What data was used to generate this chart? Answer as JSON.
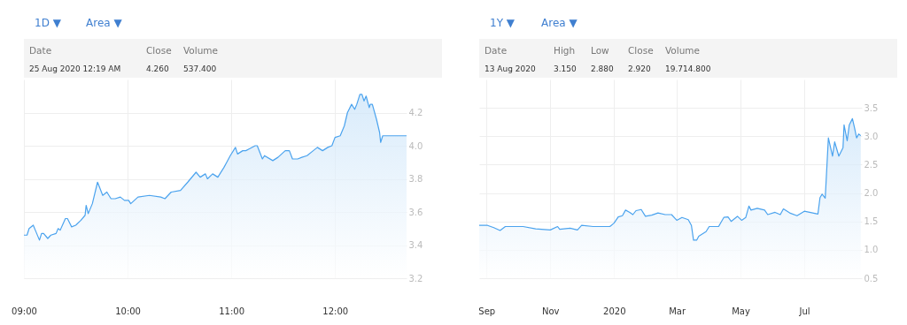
{
  "chart_data": [
    {
      "type": "area",
      "annotations": [
        "1D ▼",
        "Area ▼",
        "Date",
        "Close",
        "Volume",
        "25 Aug 2020 12:19 AM",
        "4.260",
        "537.400"
      ],
      "x": [
        9.0,
        9.03,
        9.05,
        9.09,
        9.11,
        9.15,
        9.17,
        9.19,
        9.23,
        9.26,
        9.31,
        9.33,
        9.35,
        9.4,
        9.42,
        9.46,
        9.5,
        9.55,
        9.59,
        9.6,
        9.62,
        9.66,
        9.71,
        9.76,
        9.8,
        9.84,
        9.88,
        9.93,
        9.97,
        10.01,
        10.03,
        10.1,
        10.21,
        10.32,
        10.36,
        10.42,
        10.51,
        10.58,
        10.66,
        10.7,
        10.75,
        10.77,
        10.82,
        10.87,
        10.93,
        10.99,
        11.04,
        11.06,
        11.11,
        11.14,
        11.17,
        11.23,
        11.25,
        11.3,
        11.32,
        11.4,
        11.45,
        11.52,
        11.56,
        11.59,
        11.64,
        11.68,
        11.73,
        11.79,
        11.83,
        11.88,
        11.93,
        11.97,
        12.0,
        12.05,
        12.09,
        12.12,
        12.16,
        12.19,
        12.21,
        12.24,
        12.26,
        12.28,
        12.3,
        12.33,
        12.34,
        12.36,
        12.4,
        12.43,
        12.44,
        12.46,
        12.69
      ],
      "series": [
        {
          "color": "#4ba3ee",
          "values": [
            3.46,
            3.46,
            3.5,
            3.52,
            3.49,
            3.43,
            3.47,
            3.47,
            3.44,
            3.46,
            3.47,
            3.5,
            3.49,
            3.56,
            3.56,
            3.51,
            3.52,
            3.55,
            3.58,
            3.64,
            3.59,
            3.65,
            3.78,
            3.7,
            3.72,
            3.68,
            3.68,
            3.69,
            3.67,
            3.67,
            3.65,
            3.69,
            3.7,
            3.69,
            3.68,
            3.72,
            3.73,
            3.78,
            3.84,
            3.81,
            3.83,
            3.8,
            3.83,
            3.81,
            3.87,
            3.94,
            3.99,
            3.95,
            3.97,
            3.97,
            3.98,
            4.0,
            4.0,
            3.92,
            3.94,
            3.91,
            3.93,
            3.97,
            3.97,
            3.92,
            3.92,
            3.93,
            3.94,
            3.97,
            3.99,
            3.97,
            3.99,
            4.0,
            4.05,
            4.06,
            4.12,
            4.2,
            4.25,
            4.22,
            4.25,
            4.31,
            4.31,
            4.27,
            4.3,
            4.23,
            4.25,
            4.25,
            4.16,
            4.08,
            4.02,
            4.06,
            4.06
          ]
        }
      ],
      "xlim": [
        9,
        12.69
      ],
      "xticks": [
        {
          "value": 9,
          "label": "09:00"
        },
        {
          "value": 10,
          "label": "10:00"
        },
        {
          "value": 11,
          "label": "11:00"
        },
        {
          "value": 12,
          "label": "12:00"
        }
      ],
      "ylim": [
        3.2,
        4.4
      ],
      "yticks": [
        3.2,
        3.4,
        3.6,
        3.8,
        {
          "value": 4,
          "label": "4.0"
        },
        4.2
      ],
      "grid": true
    },
    {
      "type": "area",
      "annotations": [
        "1Y ▼",
        "Area ▼",
        "Date",
        "High",
        "Low",
        "Close",
        "Volume",
        "13 Aug 2020",
        "3.150",
        "2.880",
        "2.920",
        "19.714.800"
      ],
      "x": [
        "2019-08-25",
        "2019-09-02",
        "2019-09-08",
        "2019-09-14",
        "2019-09-19",
        "2019-10-06",
        "2019-10-18",
        "2019-11-01",
        "2019-11-08",
        "2019-11-10",
        "2019-11-20",
        "2019-11-27",
        "2019-12-01",
        "2019-12-12",
        "2019-12-28",
        "2020-01-01",
        "2020-01-05",
        "2020-01-09",
        "2020-01-12",
        "2020-01-16",
        "2020-01-19",
        "2020-01-22",
        "2020-01-27",
        "2020-01-31",
        "2020-02-06",
        "2020-02-12",
        "2020-02-19",
        "2020-02-25",
        "2020-03-01",
        "2020-03-06",
        "2020-03-12",
        "2020-03-15",
        "2020-03-17",
        "2020-03-20",
        "2020-03-22",
        "2020-03-29",
        "2020-04-01",
        "2020-04-10",
        "2020-04-15",
        "2020-04-19",
        "2020-04-22",
        "2020-04-28",
        "2020-05-02",
        "2020-05-06",
        "2020-05-09",
        "2020-05-11",
        "2020-05-17",
        "2020-05-24",
        "2020-05-27",
        "2020-06-03",
        "2020-06-08",
        "2020-06-11",
        "2020-06-17",
        "2020-06-24",
        "2020-07-01",
        "2020-07-14",
        "2020-07-16",
        "2020-07-18",
        "2020-07-21",
        "2020-07-24",
        "2020-07-28",
        "2020-07-30",
        "2020-08-03",
        "2020-08-07",
        "2020-08-08",
        "2020-08-11",
        "2020-08-13",
        "2020-08-16",
        "2020-08-18",
        "2020-08-20",
        "2020-08-22",
        "2020-08-24"
      ],
      "series": [
        {
          "color": "#4ba3ee",
          "values": [
            1.43,
            1.43,
            1.39,
            1.34,
            1.41,
            1.41,
            1.37,
            1.35,
            1.41,
            1.36,
            1.38,
            1.35,
            1.43,
            1.41,
            1.41,
            1.47,
            1.58,
            1.6,
            1.7,
            1.66,
            1.62,
            1.69,
            1.71,
            1.59,
            1.61,
            1.65,
            1.62,
            1.62,
            1.52,
            1.57,
            1.53,
            1.43,
            1.17,
            1.17,
            1.24,
            1.32,
            1.41,
            1.41,
            1.57,
            1.58,
            1.5,
            1.59,
            1.52,
            1.57,
            1.77,
            1.7,
            1.73,
            1.7,
            1.62,
            1.66,
            1.62,
            1.72,
            1.65,
            1.6,
            1.68,
            1.63,
            1.92,
            1.98,
            1.91,
            2.97,
            2.65,
            2.9,
            2.65,
            2.8,
            3.2,
            2.92,
            3.2,
            3.31,
            3.15,
            2.97,
            3.04,
            3.01
          ]
        }
      ],
      "xlim": [
        "2019-08-25",
        "2020-08-25"
      ],
      "xticks": [
        {
          "value": "2019-09-01",
          "label": "Sep"
        },
        {
          "value": "2019-11-01",
          "label": "Nov"
        },
        {
          "value": "2020-01-01",
          "label": "2020"
        },
        {
          "value": "2020-03-01",
          "label": "Mar"
        },
        {
          "value": "2020-05-01",
          "label": "May"
        },
        {
          "value": "2020-07-01",
          "label": "Jul"
        }
      ],
      "ylim": [
        0.5,
        4.0
      ],
      "yticks": [
        0.5,
        {
          "value": 1,
          "label": "1.0"
        },
        1.5,
        {
          "value": 2,
          "label": "2.0"
        },
        2.5,
        {
          "value": 3,
          "label": "3.0"
        },
        3.5
      ],
      "grid": true
    }
  ]
}
